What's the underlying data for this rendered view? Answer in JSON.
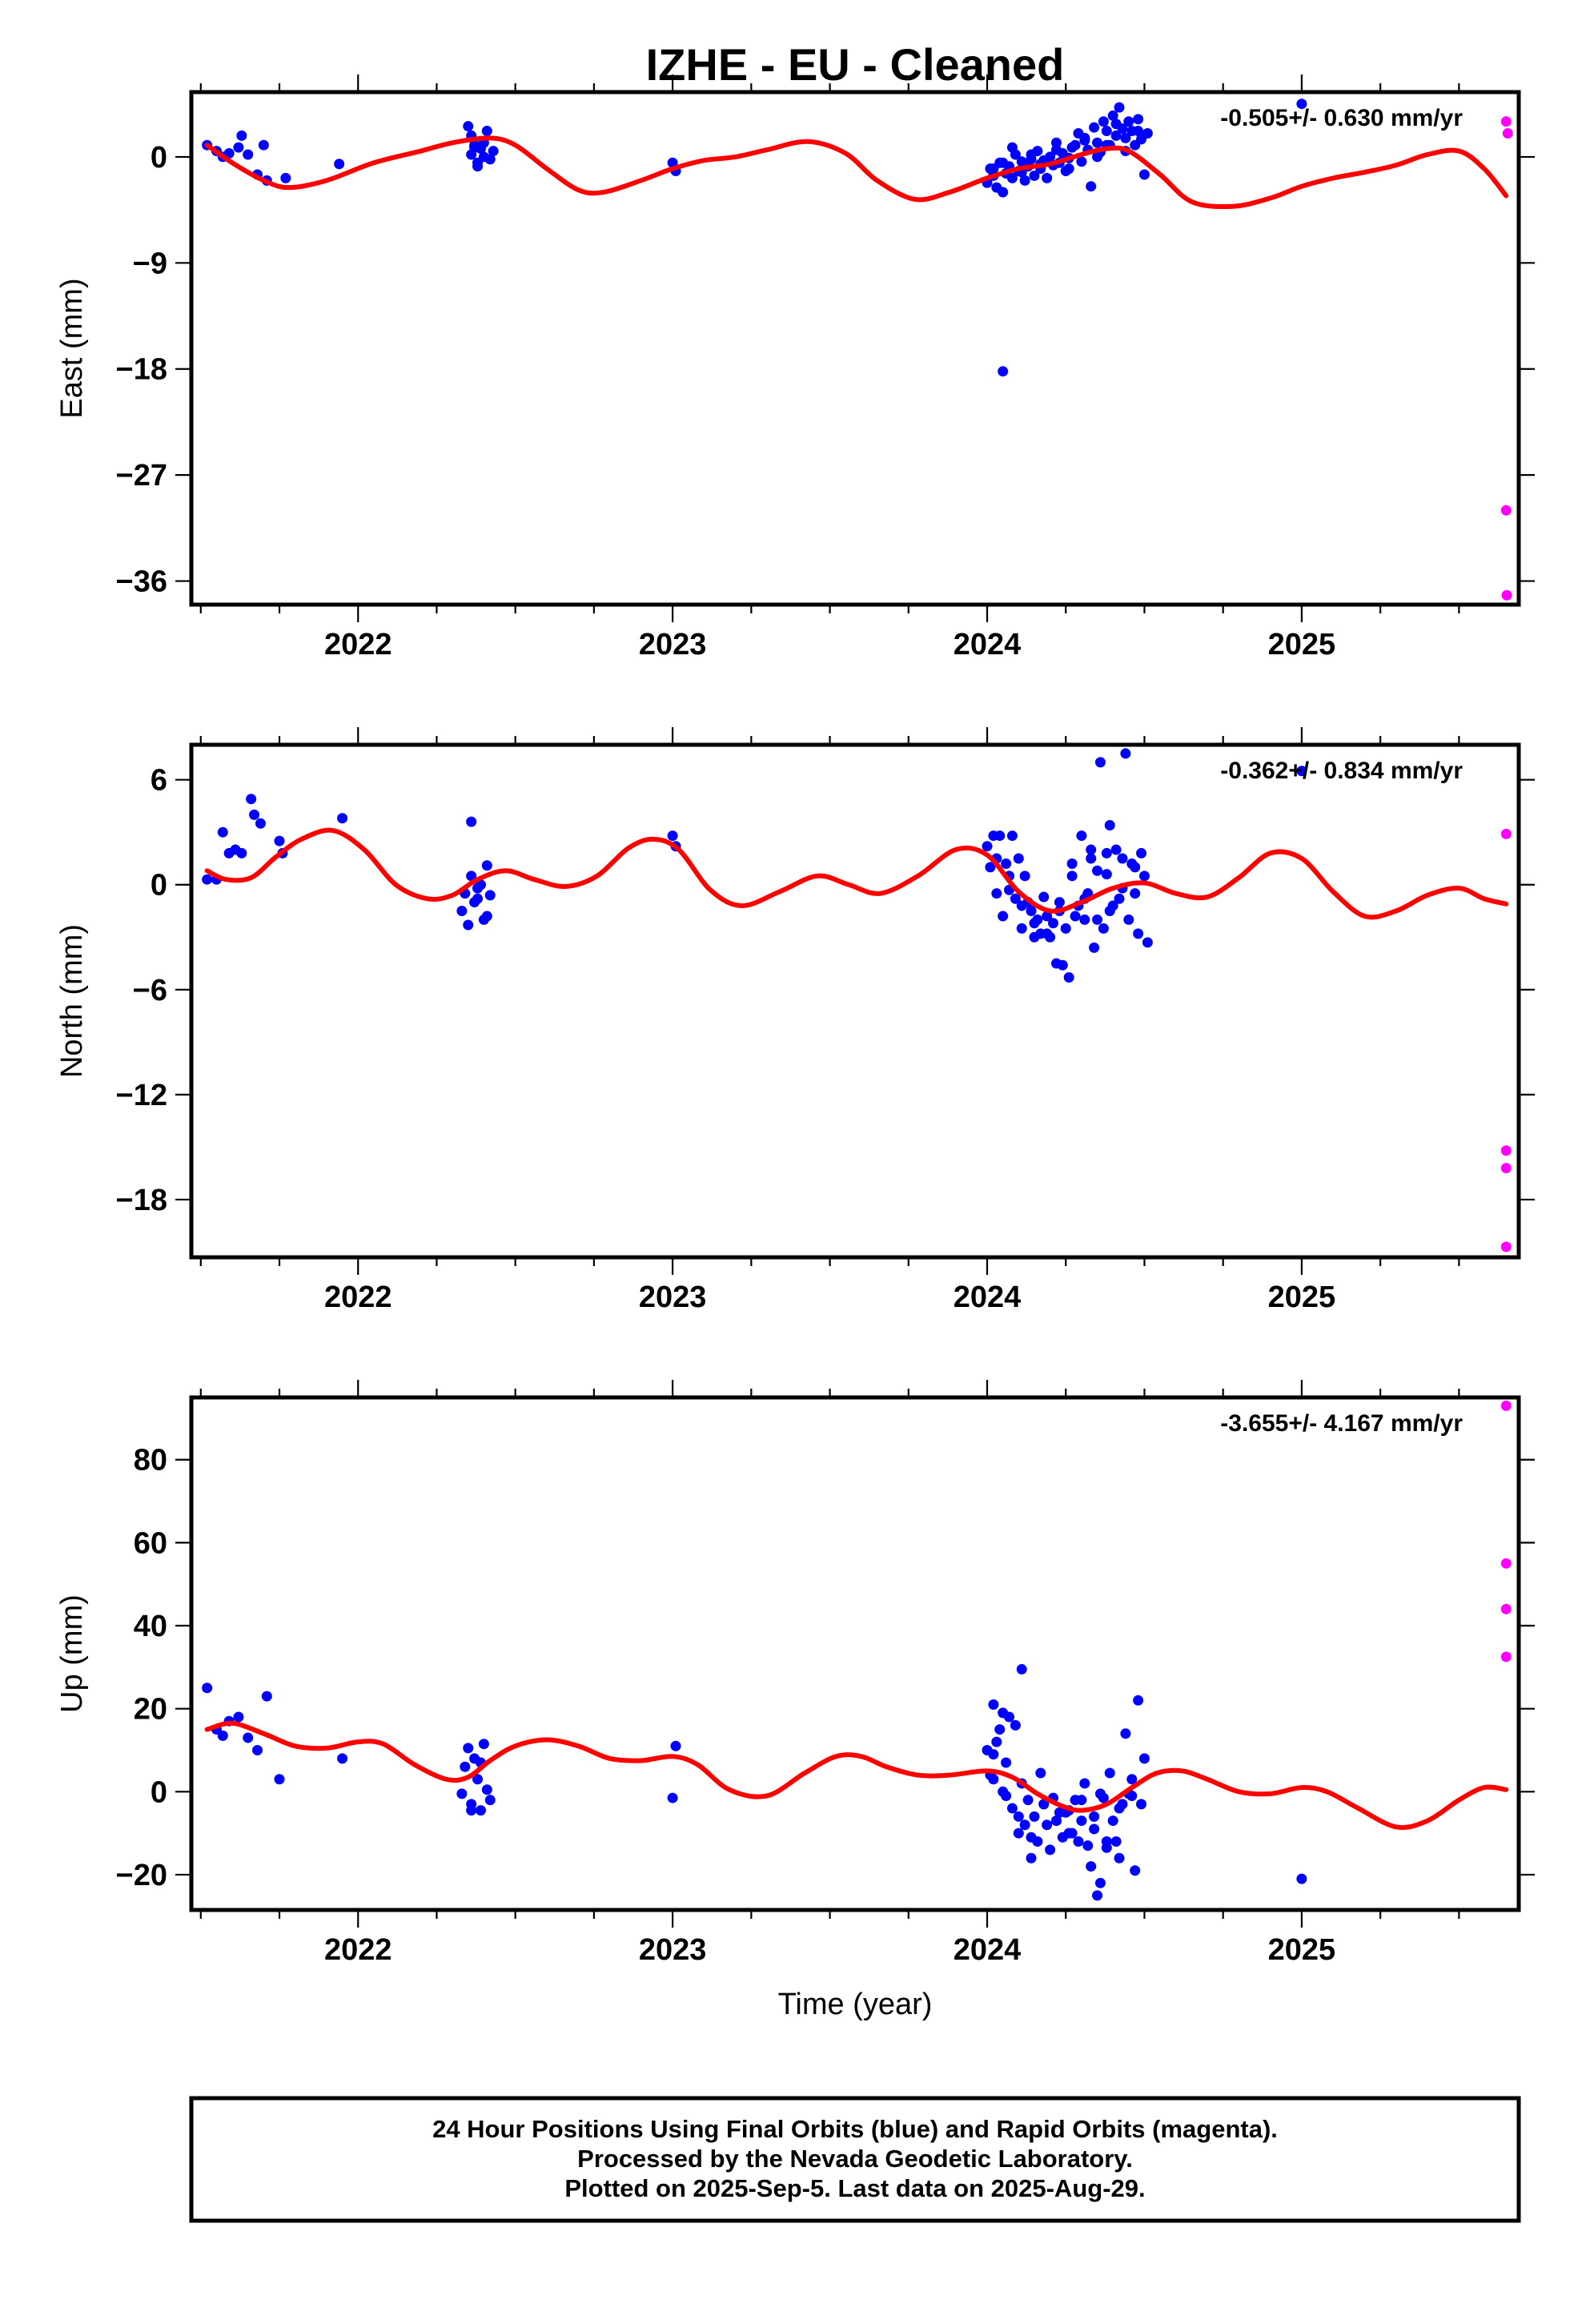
{
  "title": "IZHE  - EU - Cleaned",
  "xlabel": "Time (year)",
  "colors": {
    "final": "#0000ff",
    "rapid": "#ff00ff",
    "model": "#ff0000"
  },
  "caption": [
    "24 Hour Positions Using Final Orbits (blue) and Rapid Orbits (magenta).",
    "Processed by the Nevada Geodetic Laboratory.",
    "Plotted on 2025-Sep-5. Last data on 2025-Aug-29."
  ],
  "chart_data": [
    {
      "type": "scatter",
      "component": "East",
      "ylabel": "East (mm)",
      "rate": "-0.505+/- 0.630 mm/yr",
      "xlim": [
        2021.47,
        2025.69
      ],
      "ylim": [
        -38,
        5.5
      ],
      "yticks": [
        0,
        -9,
        -18,
        -27,
        -36
      ],
      "xticks": [
        2022,
        2023,
        2024,
        2025
      ],
      "model": {
        "x": [
          2021.52,
          2021.6,
          2021.7,
          2021.78,
          2021.9,
          2022.05,
          2022.2,
          2022.3,
          2022.42,
          2022.5,
          2022.6,
          2022.7,
          2022.78,
          2022.9,
          2023.0,
          2023.1,
          2023.2,
          2023.3,
          2023.43,
          2023.55,
          2023.65,
          2023.77,
          2023.88,
          2024.0,
          2024.1,
          2024.2,
          2024.3,
          2024.38,
          2024.45,
          2024.55,
          2024.65,
          2024.78,
          2024.9,
          2025.0,
          2025.1,
          2025.2,
          2025.3,
          2025.4,
          2025.5,
          2025.58,
          2025.65
        ],
        "y": [
          1.0,
          -0.5,
          -2.0,
          -2.6,
          -2.0,
          -0.5,
          0.5,
          1.2,
          1.6,
          1.0,
          -1.0,
          -2.8,
          -3.0,
          -2.0,
          -1.0,
          -0.3,
          0.0,
          0.6,
          1.3,
          0.3,
          -2.0,
          -3.6,
          -3.0,
          -1.8,
          -1.0,
          -0.6,
          0.2,
          0.7,
          0.5,
          -1.5,
          -3.8,
          -4.2,
          -3.5,
          -2.5,
          -1.8,
          -1.3,
          -0.7,
          0.2,
          0.5,
          -1.0,
          -3.3
        ]
      },
      "final": {
        "x": [
          2021.52,
          2021.55,
          2021.57,
          2021.59,
          2021.62,
          2021.63,
          2021.65,
          2021.68,
          2021.7,
          2021.71,
          2021.77,
          2021.94,
          2022.35,
          2022.36,
          2022.37,
          2022.38,
          2022.39,
          2022.4,
          2022.41,
          2022.42,
          2022.43,
          2022.36,
          2022.38,
          2022.37,
          2022.4,
          2023.0,
          2023.01,
          2024.0,
          2024.01,
          2024.02,
          2024.03,
          2024.04,
          2024.05,
          2024.06,
          2024.07,
          2024.08,
          2024.09,
          2024.1,
          2024.11,
          2024.12,
          2024.13,
          2024.14,
          2024.15,
          2024.16,
          2024.17,
          2024.18,
          2024.19,
          2024.2,
          2024.21,
          2024.22,
          2024.23,
          2024.24,
          2024.25,
          2024.26,
          2024.27,
          2024.28,
          2024.29,
          2024.3,
          2024.31,
          2024.32,
          2024.33,
          2024.34,
          2024.35,
          2024.36,
          2024.37,
          2024.38,
          2024.39,
          2024.4,
          2024.41,
          2024.42,
          2024.43,
          2024.44,
          2024.45,
          2024.46,
          2024.47,
          2024.48,
          2024.49,
          2024.5,
          2024.51,
          2024.02,
          2024.05,
          2024.08,
          2024.11,
          2024.14,
          2024.17,
          2024.22,
          2024.26,
          2024.31,
          2024.35,
          2024.38,
          2024.41,
          2024.44,
          2024.48,
          2024.05,
          2025.0
        ],
        "y": [
          1.0,
          0.5,
          0.0,
          0.3,
          0.8,
          1.8,
          0.2,
          -1.5,
          1.0,
          -2.0,
          -1.8,
          -0.6,
          2.6,
          0.2,
          1.0,
          -0.5,
          0.7,
          1.2,
          2.2,
          -0.2,
          0.5,
          1.8,
          -0.8,
          0.8,
          0.0,
          -0.5,
          -1.2,
          -2.2,
          -1.0,
          -1.6,
          -2.6,
          -0.5,
          -3.0,
          -1.4,
          -0.8,
          -1.8,
          0.2,
          -1.2,
          -0.4,
          -2.0,
          -0.8,
          -0.2,
          -1.6,
          0.5,
          -1.0,
          -0.3,
          -1.8,
          0.0,
          -0.7,
          1.2,
          -0.5,
          0.3,
          -1.2,
          -0.1,
          0.8,
          1.0,
          2.0,
          -0.4,
          1.6,
          0.6,
          -2.5,
          2.5,
          1.2,
          0.4,
          3.0,
          2.2,
          1.0,
          3.5,
          1.8,
          4.2,
          2.4,
          0.5,
          3.0,
          2.2,
          1.0,
          3.2,
          1.5,
          -1.5,
          2.0,
          -1.0,
          -0.5,
          0.8,
          -1.3,
          0.2,
          -0.6,
          0.6,
          -1.0,
          1.4,
          0.0,
          1.0,
          2.8,
          1.6,
          2.2,
          -18.2,
          4.5
        ]
      },
      "rapid": {
        "x": [
          2025.65,
          2025.655,
          2025.65,
          2025.652
        ],
        "y": [
          3.0,
          2.0,
          -30.0,
          -37.2
        ]
      }
    },
    {
      "type": "scatter",
      "component": "North",
      "ylabel": "North (mm)",
      "rate": "-0.362+/- 0.834 mm/yr",
      "xlim": [
        2021.47,
        2025.69
      ],
      "ylim": [
        -21.3,
        8
      ],
      "yticks": [
        6,
        0,
        -6,
        -12,
        -18
      ],
      "xticks": [
        2022,
        2023,
        2024,
        2025
      ],
      "model": {
        "x": [
          2021.52,
          2021.58,
          2021.66,
          2021.74,
          2021.82,
          2021.92,
          2022.02,
          2022.12,
          2022.22,
          2022.3,
          2022.38,
          2022.47,
          2022.56,
          2022.66,
          2022.76,
          2022.86,
          2022.94,
          2023.02,
          2023.12,
          2023.22,
          2023.34,
          2023.46,
          2023.56,
          2023.66,
          2023.78,
          2023.9,
          2024.0,
          2024.1,
          2024.2,
          2024.3,
          2024.4,
          2024.5,
          2024.6,
          2024.7,
          2024.8,
          2024.9,
          2025.0,
          2025.1,
          2025.2,
          2025.3,
          2025.4,
          2025.5,
          2025.58,
          2025.65
        ],
        "y": [
          0.8,
          0.3,
          0.4,
          1.6,
          2.6,
          3.1,
          2.0,
          0.0,
          -0.8,
          -0.6,
          0.3,
          0.8,
          0.3,
          -0.1,
          0.5,
          2.1,
          2.6,
          2.0,
          -0.3,
          -1.2,
          -0.4,
          0.5,
          0.0,
          -0.5,
          0.5,
          2.0,
          1.7,
          -0.4,
          -1.5,
          -1.0,
          -0.2,
          0.1,
          -0.5,
          -0.7,
          0.4,
          1.8,
          1.5,
          -0.4,
          -1.8,
          -1.5,
          -0.6,
          -0.2,
          -0.8,
          -1.1
        ]
      },
      "final": {
        "x": [
          2021.52,
          2021.55,
          2021.57,
          2021.59,
          2021.61,
          2021.63,
          2021.66,
          2021.67,
          2021.69,
          2021.75,
          2021.76,
          2021.95,
          2022.33,
          2022.34,
          2022.35,
          2022.36,
          2022.37,
          2022.38,
          2022.39,
          2022.4,
          2022.41,
          2022.42,
          2022.36,
          2022.38,
          2022.41,
          2023.0,
          2023.01,
          2024.0,
          2024.01,
          2024.02,
          2024.03,
          2024.04,
          2024.05,
          2024.06,
          2024.07,
          2024.08,
          2024.09,
          2024.1,
          2024.11,
          2024.12,
          2024.13,
          2024.14,
          2024.15,
          2024.16,
          2024.17,
          2024.18,
          2024.19,
          2024.2,
          2024.21,
          2024.22,
          2024.23,
          2024.24,
          2024.25,
          2024.26,
          2024.27,
          2024.28,
          2024.29,
          2024.3,
          2024.31,
          2024.32,
          2024.33,
          2024.34,
          2024.35,
          2024.36,
          2024.37,
          2024.38,
          2024.39,
          2024.4,
          2024.41,
          2024.42,
          2024.43,
          2024.44,
          2024.45,
          2024.46,
          2024.47,
          2024.48,
          2024.49,
          2024.5,
          2024.51,
          2024.03,
          2024.07,
          2024.11,
          2024.15,
          2024.19,
          2024.23,
          2024.27,
          2024.31,
          2024.35,
          2024.39,
          2024.43,
          2024.47,
          2024.33,
          2024.38,
          2025.0
        ],
        "y": [
          0.3,
          0.3,
          3.0,
          1.8,
          2.0,
          1.8,
          4.9,
          4.0,
          3.5,
          2.5,
          1.8,
          3.8,
          -1.5,
          -0.5,
          -2.3,
          3.6,
          -1.0,
          -0.2,
          0.0,
          -2.0,
          1.1,
          -0.6,
          0.5,
          -0.8,
          -1.8,
          2.8,
          2.2,
          2.2,
          1.0,
          2.8,
          -0.5,
          2.8,
          -1.8,
          1.2,
          0.5,
          2.8,
          -0.8,
          1.5,
          -2.5,
          0.5,
          -1.0,
          -1.5,
          -3.0,
          -2.0,
          -2.8,
          -0.7,
          -1.8,
          -3.0,
          -2.2,
          -4.5,
          -1.0,
          -4.6,
          -2.5,
          -5.3,
          0.5,
          -1.8,
          -1.2,
          2.8,
          -2.0,
          -0.5,
          1.5,
          -3.6,
          0.8,
          7.0,
          -2.5,
          1.8,
          3.4,
          -1.2,
          2.0,
          -0.8,
          1.5,
          7.5,
          -2.0,
          1.2,
          -0.5,
          -2.8,
          1.8,
          0.5,
          -3.3,
          1.5,
          -0.3,
          -1.2,
          -2.2,
          -2.8,
          -1.5,
          1.2,
          -0.8,
          -2.0,
          -1.5,
          -0.2,
          1.0,
          2.0,
          0.6,
          6.5
        ]
      },
      "rapid": {
        "x": [
          2025.65,
          2025.65,
          2025.65,
          2025.65
        ],
        "y": [
          2.9,
          -15.2,
          -16.2,
          -20.7
        ]
      }
    },
    {
      "type": "scatter",
      "component": "Up",
      "ylabel": "Up (mm)",
      "rate": "-3.655+/- 4.167 mm/yr",
      "xlim": [
        2021.47,
        2025.69
      ],
      "ylim": [
        -28.5,
        95
      ],
      "yticks": [
        80,
        60,
        40,
        20,
        0,
        -20
      ],
      "xticks": [
        2022,
        2023,
        2024,
        2025
      ],
      "model": {
        "x": [
          2021.52,
          2021.6,
          2021.7,
          2021.8,
          2021.9,
          2022.0,
          2022.08,
          2022.18,
          2022.28,
          2022.35,
          2022.42,
          2022.5,
          2022.6,
          2022.7,
          2022.8,
          2022.9,
          2023.0,
          2023.08,
          2023.18,
          2023.3,
          2023.42,
          2023.52,
          2023.6,
          2023.68,
          2023.78,
          2023.88,
          2024.0,
          2024.08,
          2024.16,
          2024.24,
          2024.3,
          2024.38,
          2024.46,
          2024.54,
          2024.62,
          2024.7,
          2024.8,
          2024.9,
          2025.0,
          2025.08,
          2025.18,
          2025.3,
          2025.4,
          2025.5,
          2025.58,
          2025.65
        ],
        "y": [
          15.0,
          16.5,
          14.0,
          11.0,
          10.5,
          12.0,
          11.5,
          6.5,
          3.0,
          3.5,
          7.5,
          11.0,
          12.5,
          11.0,
          8.0,
          7.5,
          8.5,
          6.5,
          0.5,
          -1.0,
          4.5,
          8.5,
          8.5,
          6.0,
          4.0,
          4.0,
          5.0,
          3.5,
          -0.5,
          -3.5,
          -4.5,
          -3.0,
          1.0,
          4.5,
          5.0,
          3.0,
          0.0,
          -0.5,
          1.0,
          0.0,
          -4.0,
          -8.5,
          -7.0,
          -2.0,
          1.0,
          0.5
        ]
      },
      "final": {
        "x": [
          2021.52,
          2021.55,
          2021.57,
          2021.59,
          2021.62,
          2021.65,
          2021.68,
          2021.71,
          2021.75,
          2021.95,
          2022.33,
          2022.34,
          2022.35,
          2022.36,
          2022.37,
          2022.38,
          2022.39,
          2022.4,
          2022.41,
          2022.42,
          2022.36,
          2022.39,
          2023.0,
          2023.01,
          2024.0,
          2024.01,
          2024.02,
          2024.03,
          2024.04,
          2024.05,
          2024.06,
          2024.07,
          2024.08,
          2024.09,
          2024.1,
          2024.11,
          2024.12,
          2024.13,
          2024.14,
          2024.15,
          2024.16,
          2024.17,
          2024.18,
          2024.19,
          2024.2,
          2024.21,
          2024.22,
          2024.23,
          2024.24,
          2024.25,
          2024.26,
          2024.27,
          2024.28,
          2024.29,
          2024.3,
          2024.31,
          2024.32,
          2024.33,
          2024.34,
          2024.35,
          2024.36,
          2024.37,
          2024.38,
          2024.39,
          2024.4,
          2024.41,
          2024.42,
          2024.43,
          2024.44,
          2024.45,
          2024.46,
          2024.47,
          2024.48,
          2024.49,
          2024.5,
          2024.02,
          2024.06,
          2024.1,
          2024.14,
          2024.18,
          2024.22,
          2024.26,
          2024.3,
          2024.34,
          2024.38,
          2024.42,
          2024.46,
          2024.11,
          2024.36,
          2024.02,
          2024.05,
          2025.0
        ],
        "y": [
          25.0,
          15.0,
          13.5,
          17.0,
          18.0,
          13.0,
          10.0,
          23.0,
          3.0,
          8.0,
          -0.5,
          6.0,
          10.5,
          -3.0,
          8.0,
          3.0,
          -4.5,
          11.5,
          0.5,
          -2.0,
          -4.5,
          7.0,
          -1.5,
          11.0,
          10.0,
          4.0,
          21.0,
          12.0,
          15.0,
          0.0,
          7.0,
          18.0,
          -4.0,
          16.0,
          -10.0,
          2.0,
          -8.0,
          -2.0,
          -16.0,
          -6.0,
          -12.0,
          4.5,
          -3.0,
          -8.0,
          -14.0,
          -1.5,
          -7.0,
          -5.0,
          -11.0,
          -5.0,
          -4.5,
          -10.0,
          -2.0,
          -12.0,
          -7.0,
          2.0,
          -13.0,
          -18.0,
          -9.0,
          -25.0,
          -22.0,
          -1.5,
          -13.5,
          4.5,
          -7.0,
          -12.0,
          -16.0,
          -3.0,
          14.0,
          -0.5,
          3.0,
          -19.0,
          22.0,
          -3.0,
          8.0,
          3.0,
          -1.0,
          -6.0,
          -11.0,
          -3.0,
          -7.0,
          -10.0,
          -2.0,
          -6.0,
          -12.0,
          -4.0,
          -1.0,
          29.5,
          -0.5,
          9.0,
          19.0,
          -21.0
        ],
        "note_x": []
      },
      "rapid": {
        "x": [
          2025.65,
          2025.65,
          2025.65,
          2025.65
        ],
        "y": [
          93.0,
          55.0,
          44.0,
          32.5
        ]
      }
    }
  ]
}
